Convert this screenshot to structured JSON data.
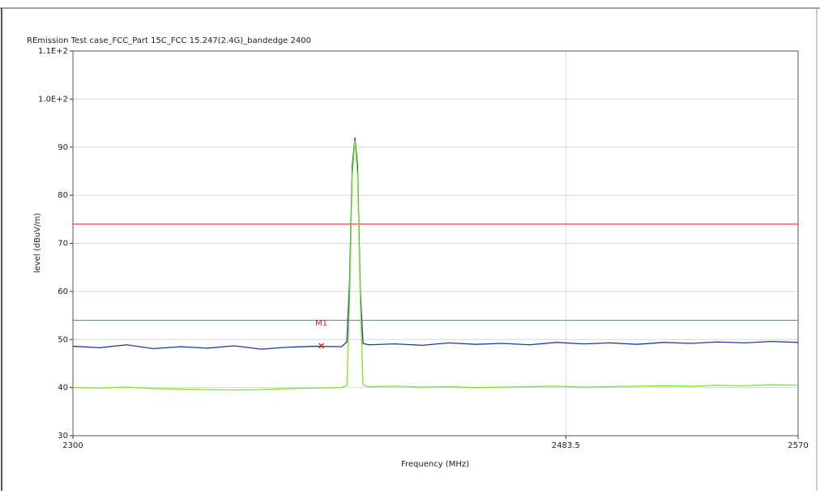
{
  "chart_data": {
    "type": "line",
    "title": "REmission Test case_FCC_Part 15C_FCC 15.247(2.4G)_bandedge 2400",
    "xlabel": "Frequency (MHz)",
    "ylabel": "level (dBuV/m)",
    "xlim": [
      2300,
      2570
    ],
    "xticks": [
      2300,
      2483.5,
      2570
    ],
    "ylim": [
      30,
      110
    ],
    "yticks": [
      30,
      40,
      50,
      60,
      70,
      80,
      90,
      {
        "value": 100,
        "label": "1.0E+2"
      },
      {
        "value": 110,
        "label": "1.1E+2"
      }
    ],
    "grid": true,
    "x": [
      2300,
      2310,
      2320,
      2330,
      2340,
      2350,
      2360,
      2370,
      2380,
      2390,
      2400,
      2402,
      2403,
      2404,
      2405,
      2406,
      2407,
      2408,
      2410,
      2420,
      2430,
      2440,
      2450,
      2460,
      2470,
      2480,
      2490,
      2500,
      2510,
      2520,
      2530,
      2540,
      2550,
      2560,
      2570
    ],
    "series": [
      {
        "color": "#1a3aa8",
        "values": [
          48.6,
          48.3,
          48.9,
          48.1,
          48.5,
          48.2,
          48.7,
          48.0,
          48.4,
          48.6,
          48.5,
          49.5,
          62,
          86,
          92,
          86,
          60,
          49.2,
          48.9,
          49.1,
          48.8,
          49.3,
          49.0,
          49.2,
          48.9,
          49.4,
          49.1,
          49.3,
          49.0,
          49.4,
          49.2,
          49.5,
          49.3,
          49.6,
          49.4
        ]
      },
      {
        "color": "#7ee81c",
        "values": [
          40.0,
          39.9,
          40.1,
          39.8,
          39.7,
          39.6,
          39.5,
          39.6,
          39.8,
          39.9,
          40.0,
          40.5,
          58,
          84,
          91.5,
          84,
          58,
          40.6,
          40.2,
          40.3,
          40.1,
          40.2,
          40.0,
          40.1,
          40.2,
          40.3,
          40.1,
          40.2,
          40.3,
          40.4,
          40.3,
          40.5,
          40.4,
          40.6,
          40.5
        ]
      }
    ],
    "limit_lines": [
      {
        "value": 74,
        "color": "#e02020"
      },
      {
        "value": 54,
        "color": "#22c040"
      }
    ],
    "markers": [
      {
        "label": "M1",
        "x": 2392.5,
        "y": 48.7,
        "color": "#e02020"
      }
    ]
  }
}
